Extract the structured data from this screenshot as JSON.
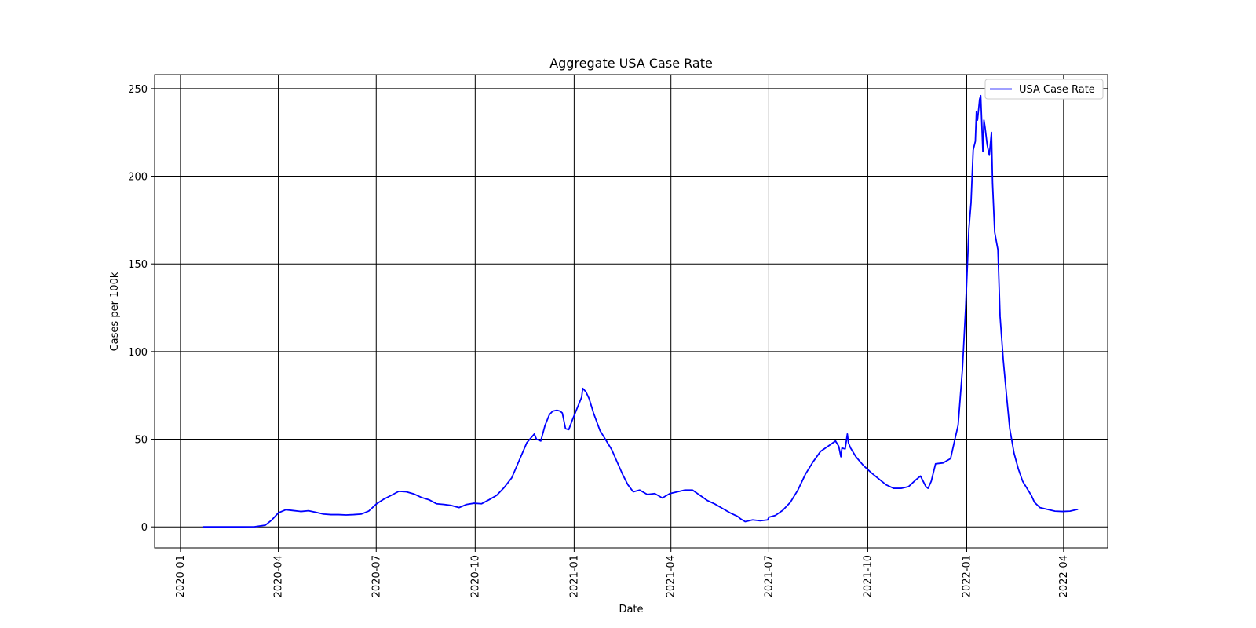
{
  "chart_data": {
    "type": "line",
    "title": "Aggregate USA Case Rate",
    "xlabel": "Date",
    "ylabel": "Cases per 100k",
    "x_axis_type": "date",
    "xlim": [
      "2019-12-08",
      "2022-05-12"
    ],
    "ylim": [
      -12,
      258
    ],
    "grid": true,
    "legend_position": "upper-right",
    "xticks": [
      "2020-01",
      "2020-04",
      "2020-07",
      "2020-10",
      "2021-01",
      "2021-04",
      "2021-07",
      "2021-10",
      "2022-01",
      "2022-04"
    ],
    "yticks": [
      0,
      50,
      100,
      150,
      200,
      250
    ],
    "line_color": "#0000ff",
    "series": [
      {
        "name": "USA Case Rate",
        "color": "#0000ff",
        "x": [
          "2020-01-22",
          "2020-02-15",
          "2020-03-10",
          "2020-03-20",
          "2020-03-26",
          "2020-04-01",
          "2020-04-08",
          "2020-04-15",
          "2020-04-22",
          "2020-04-29",
          "2020-05-06",
          "2020-05-13",
          "2020-05-20",
          "2020-05-27",
          "2020-06-03",
          "2020-06-10",
          "2020-06-17",
          "2020-06-24",
          "2020-07-01",
          "2020-07-08",
          "2020-07-15",
          "2020-07-22",
          "2020-07-29",
          "2020-08-05",
          "2020-08-12",
          "2020-08-19",
          "2020-08-26",
          "2020-09-02",
          "2020-09-09",
          "2020-09-16",
          "2020-09-23",
          "2020-09-30",
          "2020-10-07",
          "2020-10-14",
          "2020-10-21",
          "2020-10-28",
          "2020-11-04",
          "2020-11-11",
          "2020-11-18",
          "2020-11-25",
          "2020-11-27",
          "2020-12-01",
          "2020-12-05",
          "2020-12-09",
          "2020-12-12",
          "2020-12-16",
          "2020-12-19",
          "2020-12-21",
          "2020-12-24",
          "2020-12-27",
          "2020-12-31",
          "2021-01-04",
          "2021-01-08",
          "2021-01-09",
          "2021-01-12",
          "2021-01-15",
          "2021-01-19",
          "2021-01-25",
          "2021-01-28",
          "2021-02-01",
          "2021-02-05",
          "2021-02-10",
          "2021-02-15",
          "2021-02-20",
          "2021-02-25",
          "2021-03-03",
          "2021-03-10",
          "2021-03-17",
          "2021-03-24",
          "2021-03-31",
          "2021-04-07",
          "2021-04-14",
          "2021-04-21",
          "2021-04-28",
          "2021-05-05",
          "2021-05-12",
          "2021-05-19",
          "2021-05-26",
          "2021-06-02",
          "2021-06-05",
          "2021-06-09",
          "2021-06-16",
          "2021-06-23",
          "2021-06-30",
          "2021-07-01",
          "2021-07-07",
          "2021-07-14",
          "2021-07-21",
          "2021-07-28",
          "2021-08-04",
          "2021-08-11",
          "2021-08-18",
          "2021-08-25",
          "2021-09-01",
          "2021-09-04",
          "2021-09-06",
          "2021-09-07",
          "2021-09-10",
          "2021-09-12",
          "2021-09-13",
          "2021-09-15",
          "2021-09-20",
          "2021-09-27",
          "2021-10-04",
          "2021-10-11",
          "2021-10-18",
          "2021-10-25",
          "2021-11-01",
          "2021-11-08",
          "2021-11-15",
          "2021-11-19",
          "2021-11-24",
          "2021-11-26",
          "2021-11-29",
          "2021-12-03",
          "2021-12-10",
          "2021-12-17",
          "2021-12-21",
          "2021-12-24",
          "2021-12-28",
          "2021-12-31",
          "2022-01-03",
          "2022-01-05",
          "2022-01-07",
          "2022-01-09",
          "2022-01-10",
          "2022-01-11",
          "2022-01-13",
          "2022-01-14",
          "2022-01-16",
          "2022-01-17",
          "2022-01-18",
          "2022-01-20",
          "2022-01-22",
          "2022-01-24",
          "2022-01-25",
          "2022-01-27",
          "2022-01-30",
          "2022-02-01",
          "2022-02-04",
          "2022-02-07",
          "2022-02-10",
          "2022-02-14",
          "2022-02-18",
          "2022-02-22",
          "2022-02-26",
          "2022-03-02",
          "2022-03-05",
          "2022-03-10",
          "2022-03-17",
          "2022-03-24",
          "2022-03-31",
          "2022-04-07",
          "2022-04-14"
        ],
        "y": [
          0,
          0,
          0.1,
          1,
          4,
          8,
          9.8,
          9.3,
          8.8,
          9.2,
          8.3,
          7.3,
          7.0,
          7.0,
          6.8,
          7.0,
          7.3,
          9.0,
          13.0,
          15.8,
          18.0,
          20.3,
          20.0,
          18.8,
          16.8,
          15.5,
          13.2,
          12.8,
          12.2,
          11.0,
          12.8,
          13.5,
          13.2,
          15.5,
          18.0,
          22.5,
          28.0,
          38.0,
          48.0,
          53.0,
          50.0,
          49.0,
          58.0,
          64.0,
          66.0,
          66.5,
          66.0,
          65.0,
          56.0,
          55.5,
          62.0,
          68.0,
          74.0,
          79.0,
          77.0,
          73.0,
          65.0,
          55.0,
          52.0,
          48.0,
          44.0,
          37.0,
          30.0,
          24.0,
          20.0,
          21.0,
          18.5,
          19.0,
          16.5,
          19.0,
          20.0,
          21.0,
          21.0,
          18.0,
          15.0,
          13.0,
          10.5,
          8.0,
          6.0,
          4.5,
          3.0,
          4.0,
          3.5,
          4.0,
          5.5,
          6.5,
          9.5,
          14.0,
          21.0,
          30.0,
          37.0,
          43.0,
          46.0,
          49.0,
          46.0,
          40.0,
          45.0,
          44.5,
          53.0,
          48.0,
          45.0,
          40.0,
          35.0,
          31.0,
          27.5,
          24.0,
          22.0,
          22.0,
          23.0,
          27.0,
          29.0,
          23.0,
          22.0,
          26.0,
          36.0,
          36.5,
          39.0,
          50.0,
          58.0,
          90.0,
          125.0,
          170.0,
          185.0,
          215.0,
          220.0,
          237.0,
          232.0,
          244.0,
          246.0,
          214.0,
          232.0,
          228.0,
          218.0,
          212.0,
          225.0,
          196.0,
          168.0,
          158.0,
          120.0,
          95.0,
          75.0,
          56.0,
          42.0,
          33.0,
          26.0,
          22.0,
          18.0,
          14.0,
          11.0,
          10.0,
          9.0,
          8.8,
          9.0,
          10.0
        ]
      }
    ]
  }
}
